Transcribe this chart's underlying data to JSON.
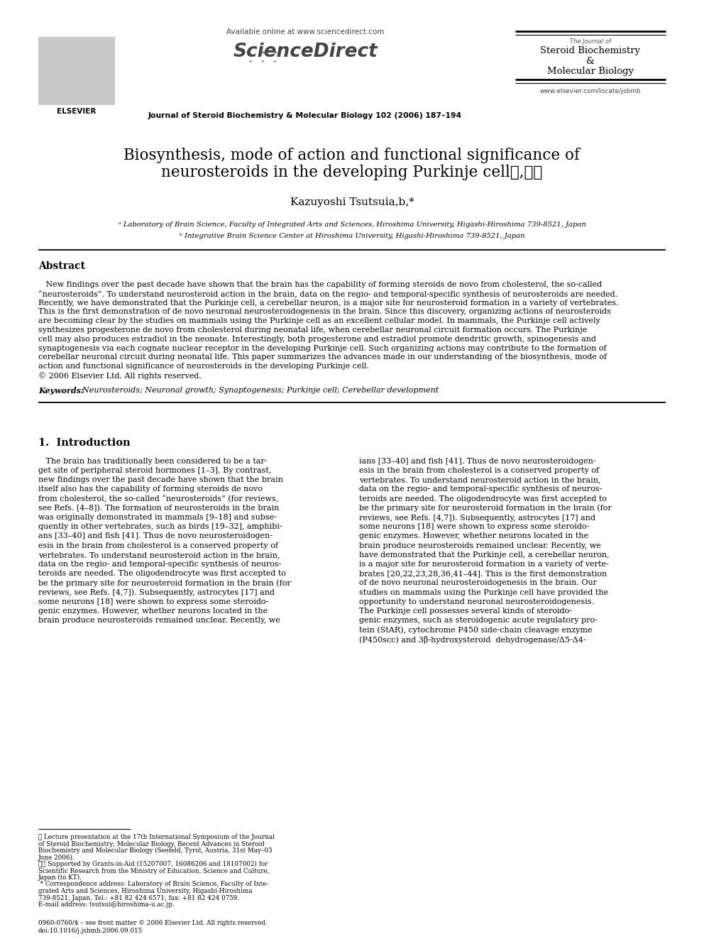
{
  "bg_color": "#ffffff",
  "title_line1": "Biosynthesis, mode of action and functional significance of",
  "title_line2": "neurosteroids in the developing Purkinje cell★,★★",
  "author": "Kazuyoshi Tsutsui",
  "author_sup": "a,b,*",
  "affil_a": "ᵃ Laboratory of Brain Science, Faculty of Integrated Arts and Sciences, Hiroshima University, Higashi-Hiroshima 739-8521, Japan",
  "affil_b": "ᵇ Integrative Brain Science Center at Hiroshima University, Higashi-Hiroshima 739-8521, Japan",
  "journal_center": "Journal of Steroid Biochemistry & Molecular Biology 102 (2006) 187–194",
  "available_online": "Available online at www.sciencedirect.com",
  "sciencedirect": "ScienceDirect",
  "journal_right_tiny": "The Journal of",
  "journal_right_l1": "Steroid Biochemistry",
  "journal_right_l2": "&",
  "journal_right_l3": "Molecular Biology",
  "journal_url": "www.elsevier.com/locate/jsbmb",
  "abstract_title": "Abstract",
  "keywords_label": "Keywords:",
  "keywords_text": "  Neurosteroids; Neuronal growth; Synaptogenesis; Purkinje cell; Cerebellar development",
  "section1_title": "1.  Introduction",
  "abstract_lines": [
    "   New findings over the past decade have shown that the brain has the capability of forming steroids de novo from cholesterol, the so-called",
    "“neurosteroids”. To understand neurosteroid action in the brain, data on the regio- and temporal-specific synthesis of neurosteroids are needed.",
    "Recently, we have demonstrated that the Purkinje cell, a cerebellar neuron, is a major site for neurosteroid formation in a variety of vertebrates.",
    "This is the first demonstration of de novo neuronal neurosteroidogenesis in the brain. Since this discovery, organizing actions of neurosteroids",
    "are becoming clear by the studies on mammals using the Purkinje cell as an excellent cellular model. In mammals, the Purkinje cell actively",
    "synthesizes progesterone de novo from cholesterol during neonatal life, when cerebellar neuronal circuit formation occurs. The Purkinje",
    "cell may also produces estradiol in the neonate. Interestingly, both progesterone and estradiol promote dendritic growth, spinogenesis and",
    "synaptogenesis via each cognate nuclear receptor in the developing Purkinje cell. Such organizing actions may contribute to the formation of",
    "cerebellar neuronal circuit during neonatal life. This paper summarizes the advances made in our understanding of the biosynthesis, mode of",
    "action and functional significance of neurosteroids in the developing Purkinje cell.",
    "© 2006 Elsevier Ltd. All rights reserved."
  ],
  "col1_lines": [
    "   The brain has traditionally been considered to be a tar-",
    "get site of peripheral steroid hormones [1–3]. By contrast,",
    "new findings over the past decade have shown that the brain",
    "itself also has the capability of forming steroids de novo",
    "from cholesterol, the so-called “neurosteroids” (for reviews,",
    "see Refs. [4–8]). The formation of neurosteroids in the brain",
    "was originally demonstrated in mammals [9–18] and subse-",
    "quently in other vertebrates, such as birds [19–32], amphibi-"
  ],
  "col2_lines": [
    "ians [33–40] and fish [41]. Thus de novo neurosteroidogen-",
    "esis in the brain from cholesterol is a conserved property of",
    "vertebrates. To understand neurosteroid action in the brain,",
    "data on the regio- and temporal-specific synthesis of neuros-",
    "teroids are needed. The oligodendrocyte was first accepted to",
    "be the primary site for neurosteroid formation in the brain (for",
    "reviews, see Refs. [4,7]). Subsequently, astrocytes [17] and",
    "some neurons [18] were shown to express some steroido-"
  ],
  "col1_lines2": [
    "ans [33–40] and fish [41]. Thus de novo neurosteroidogen-",
    "esis in the brain from cholesterol is a conserved property of",
    "vertebrates. To understand neurosteroid action in the brain,",
    "data on the regio- and temporal-specific synthesis of neuros-",
    "teroids are needed. The oligodendrocyte was first accepted to",
    "be the primary site for neurosteroid formation in the brain (for",
    "reviews, see Refs. [4,7]). Subsequently, astrocytes [17] and",
    "some neurons [18] were shown to express some steroido-",
    "genic enzymes. However, whether neurons located in the",
    "brain produce neurosteroids remained unclear. Recently, we"
  ],
  "col2_lines2": [
    "genic enzymes. However, whether neurons located in the",
    "brain produce neurosteroids remained unclear. Recently, we",
    "have demonstrated that the Purkinje cell, a cerebellar neuron,",
    "is a major site for neurosteroid formation in a variety of verte-",
    "brates [20,22,23,28,36,41–44]. This is the first demonstration",
    "of de novo neuronal neurosteroidogenesis in the brain. Our",
    "studies on mammals using the Purkinje cell have provided the",
    "opportunity to understand neuronal neurosteroidogenesis.",
    "The Purkinje cell possesses several kinds of steroido-",
    "genic enzymes, such as steroidogenic acute regulatory pro-",
    "tein (StAR), cytochrome P450 side-chain cleavage enzyme",
    "(P450scc) and 3β-hydroxysteroid  dehydrogenase/Δ5-Δ4-"
  ],
  "fn_lines": [
    "★ Lecture presentation at the 17th International Symposium of the Journal",
    "of Steroid Biochemistry; Molecular Biology, Recent Advances in Steroid",
    "Biochemistry and Molecular Biology (Seefeld, Tyrol, Austria, 31st May–03",
    "June 2006).",
    "★★ Supported by Grants-in-Aid (15207007, 16086206 and 18107002) for",
    "Scientific Research from the Ministry of Education, Science and Culture,",
    "Japan (to KT).",
    " * Correspondence address: Laboratory of Brain Science, Faculty of Inte-",
    "grated Arts and Sciences, Hiroshima University, Higashi-Hiroshima",
    "739-8521, Japan. Tel.: +81 82 424 6571; fax: +81 82 424 0759.",
    "E-mail address: tsutsui@hiroshima-u.ac.jp."
  ],
  "bottom_lines": [
    "0960-0760/$ – see front matter © 2006 Elsevier Ltd. All rights reserved.",
    "doi:10.1016/j.jsbmb.2006.09.015"
  ]
}
